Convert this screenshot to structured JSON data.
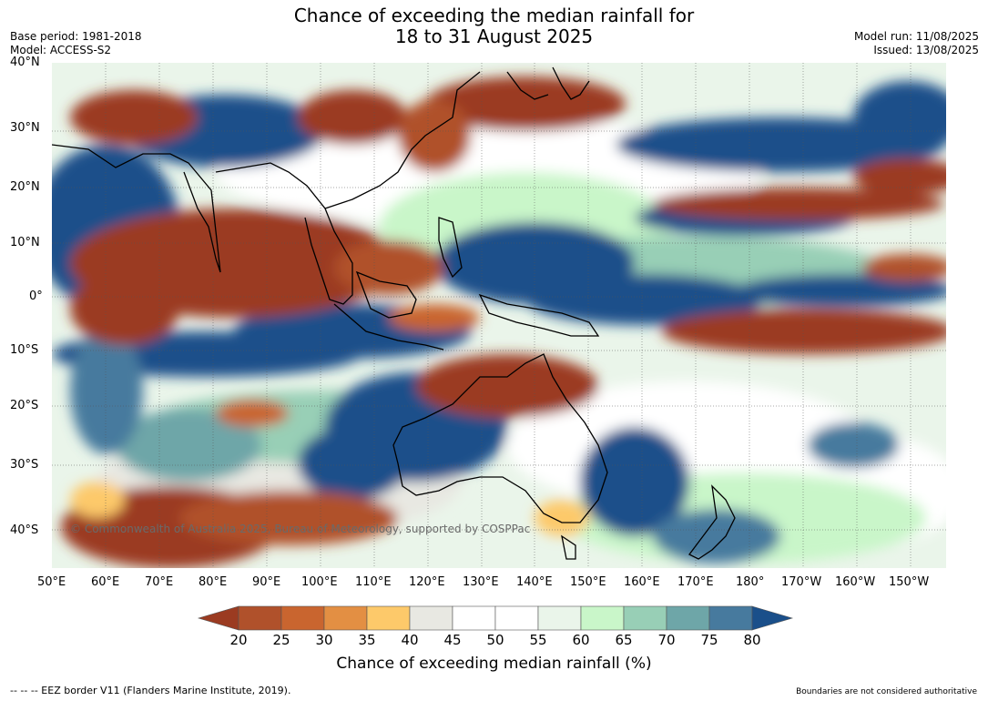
{
  "header": {
    "title_line1": "Chance of exceeding the median rainfall for",
    "title_line2": "18 to 31 August 2025",
    "base_period": "Base period: 1981-2018",
    "model": "Model: ACCESS-S2",
    "model_run": "Model run: 11/08/2025",
    "issued": "Issued: 13/08/2025"
  },
  "map": {
    "lat_labels": [
      "40°N",
      "30°N",
      "20°N",
      "10°N",
      "0°",
      "10°S",
      "20°S",
      "30°S",
      "40°S"
    ],
    "lon_labels": [
      "50°E",
      "60°E",
      "70°E",
      "80°E",
      "90°E",
      "100°E",
      "110°E",
      "120°E",
      "130°E",
      "140°E",
      "150°E",
      "160°E",
      "170°E",
      "180°",
      "170°W",
      "160°W",
      "150°W"
    ],
    "copyright": "© Commonwealth of Australia 2025, Bureau of Meteorology, supported by COSPPac"
  },
  "colorbar": {
    "tick_labels": [
      "20",
      "25",
      "30",
      "35",
      "40",
      "45",
      "50",
      "55",
      "60",
      "65",
      "70",
      "75",
      "80"
    ],
    "title": "Chance of exceeding median rainfall (%)",
    "colors": [
      "#9b3b21",
      "#b0512b",
      "#c9652f",
      "#e38f43",
      "#fdc96a",
      "#e8e8e2",
      "#ffffff",
      "#ffffff",
      "#eaf5ea",
      "#c9f6c9",
      "#98cfb6",
      "#6ea6a8",
      "#477a9e",
      "#1a4f8a"
    ]
  },
  "footer": {
    "eez": "--  --  -- EEZ border V11 (Flanders Marine Institute, 2019).",
    "disclaimer": "Boundaries are not considered authoritative"
  }
}
